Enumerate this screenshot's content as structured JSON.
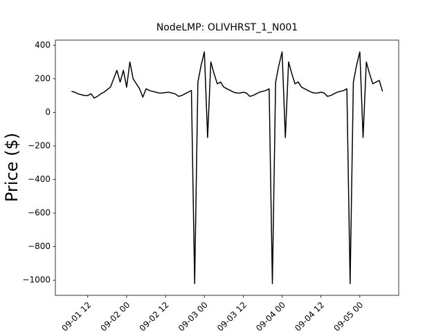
{
  "chart_data": {
    "type": "line",
    "title": "NodeLMP: OLIVHRST_1_N001",
    "y_label": "Price ($)",
    "x": [
      "09-01 07",
      "09-01 08",
      "09-01 09",
      "09-01 10",
      "09-01 11",
      "09-01 12",
      "09-01 13",
      "09-01 14",
      "09-01 15",
      "09-01 16",
      "09-01 17",
      "09-01 18",
      "09-01 19",
      "09-01 20",
      "09-01 21",
      "09-01 22",
      "09-01 23",
      "09-02 00",
      "09-02 01",
      "09-02 02",
      "09-02 03",
      "09-02 04",
      "09-02 05",
      "09-02 06",
      "09-02 07",
      "09-02 08",
      "09-02 09",
      "09-02 10",
      "09-02 11",
      "09-02 12",
      "09-02 13",
      "09-02 14",
      "09-02 15",
      "09-02 16",
      "09-02 17",
      "09-02 18",
      "09-02 19",
      "09-02 20",
      "09-02 21",
      "09-02 22",
      "09-02 23",
      "09-03 00",
      "09-03 01",
      "09-03 02",
      "09-03 03",
      "09-03 04",
      "09-03 05",
      "09-03 06",
      "09-03 07",
      "09-03 08",
      "09-03 09",
      "09-03 10",
      "09-03 11",
      "09-03 12",
      "09-03 13",
      "09-03 14",
      "09-03 15",
      "09-03 16",
      "09-03 17",
      "09-03 18",
      "09-03 19",
      "09-03 20",
      "09-03 21",
      "09-03 22",
      "09-03 23",
      "09-04 00",
      "09-04 01",
      "09-04 02",
      "09-04 03",
      "09-04 04",
      "09-04 05",
      "09-04 06",
      "09-04 07",
      "09-04 08",
      "09-04 09",
      "09-04 10",
      "09-04 11",
      "09-04 12",
      "09-04 13",
      "09-04 14",
      "09-04 15",
      "09-04 16",
      "09-04 17",
      "09-04 18",
      "09-04 19",
      "09-04 20",
      "09-04 21",
      "09-04 22",
      "09-04 23",
      "09-05 00",
      "09-05 01",
      "09-05 02",
      "09-05 03",
      "09-05 04",
      "09-05 05",
      "09-05 06",
      "09-05 07"
    ],
    "series": [
      {
        "color": "#000000",
        "values": [
          125,
          120,
          110,
          105,
          100,
          100,
          110,
          85,
          95,
          110,
          120,
          135,
          150,
          200,
          250,
          180,
          250,
          150,
          300,
          200,
          170,
          140,
          90,
          140,
          130,
          125,
          120,
          115,
          115,
          118,
          120,
          115,
          110,
          95,
          100,
          110,
          120,
          130,
          -1020,
          180,
          280,
          360,
          -150,
          300,
          230,
          170,
          180,
          150,
          140,
          130,
          120,
          115,
          115,
          120,
          115,
          95,
          100,
          110,
          120,
          125,
          130,
          140,
          -1020,
          180,
          280,
          360,
          -150,
          300,
          230,
          170,
          180,
          150,
          140,
          130,
          120,
          115,
          115,
          120,
          115,
          95,
          100,
          110,
          120,
          125,
          130,
          140,
          -1020,
          180,
          280,
          360,
          -150,
          300,
          230,
          170,
          180,
          190,
          125
        ]
      }
    ],
    "xlim": [
      "09-01 02",
      "09-05 12"
    ],
    "xticks": [
      "09-01 12",
      "09-02 00",
      "09-02 12",
      "09-03 00",
      "09-03 12",
      "09-04 00",
      "09-04 12",
      "09-05 00"
    ],
    "ylim": [
      -1090,
      430
    ],
    "yticks": [
      {
        "value": -1000,
        "label": "−1000"
      },
      {
        "value": -800,
        "label": "−800"
      },
      {
        "value": -600,
        "label": "−600"
      },
      {
        "value": -400,
        "label": "−400"
      },
      {
        "value": -200,
        "label": "−200"
      },
      0,
      200,
      400
    ],
    "grid": false
  }
}
